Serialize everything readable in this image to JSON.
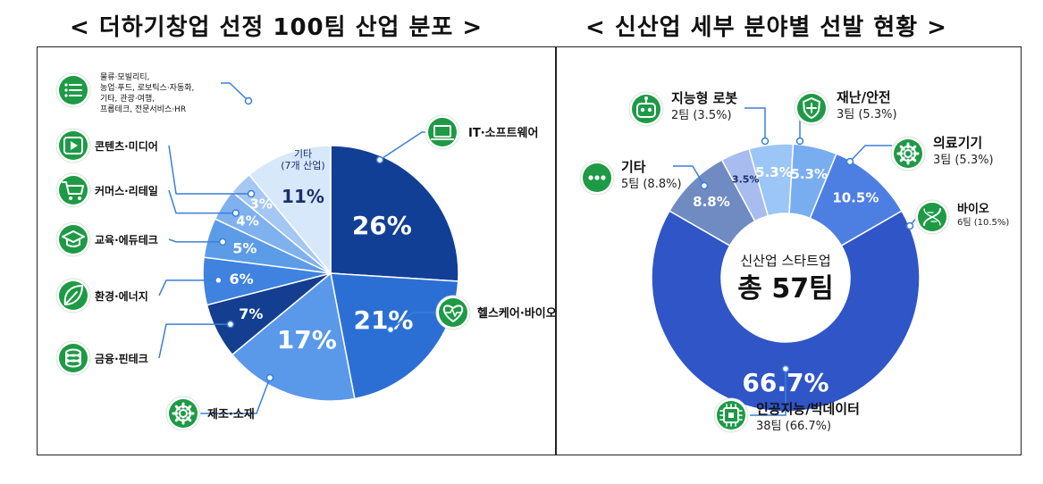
{
  "titles": {
    "left": "< 더하기창업 선정 100팀 산업 분포 >",
    "right": "< 신산업 세부 분야별 선발 현황 >"
  },
  "colors": {
    "label_green": "#1e9a46",
    "label_green_dark": "#14773a",
    "leader": "#3b7fd6"
  },
  "chart_data": [
    {
      "type": "pie",
      "title": "더하기창업 선정 100팀 산업 분포",
      "slices": [
        {
          "label": "IT·소프트웨어",
          "value": 26,
          "value_label": "26%",
          "color": "#123f96",
          "icon": "laptop-icon"
        },
        {
          "label": "헬스케어·바이오",
          "value": 21,
          "value_label": "21%",
          "color": "#2c6fd4",
          "icon": "heartbeat-icon"
        },
        {
          "label": "제조·소재",
          "value": 17,
          "value_label": "17%",
          "color": "#5a98ea",
          "icon": "gear-icon"
        },
        {
          "label": "금융·핀테크",
          "value": 7,
          "value_label": "7%",
          "color": "#143f90",
          "icon": "coins-icon"
        },
        {
          "label": "환경·에너지",
          "value": 6,
          "value_label": "6%",
          "color": "#3f82df",
          "icon": "leaf-icon"
        },
        {
          "label": "교육·에듀테크",
          "value": 5,
          "value_label": "5%",
          "color": "#5c9ce6",
          "icon": "graduation-cap-icon"
        },
        {
          "label": "커머스·리테일",
          "value": 4,
          "value_label": "4%",
          "color": "#7eb1ee",
          "icon": "cart-icon"
        },
        {
          "label": "콘텐츠·미디어",
          "value": 3,
          "value_label": "3%",
          "color": "#a4c8f3",
          "icon": "play-icon"
        },
        {
          "label": "기타\n(7개 산업)",
          "value": 11,
          "value_label": "11%",
          "color": "#d8e8fb",
          "icon": "list-icon",
          "sub_items": [
            "물류·모빌리티,",
            "농업·푸드, 로보틱스·자동화,",
            "기타, 관광·여행,",
            "프롭테크, 전문서비스·HR"
          ]
        }
      ]
    },
    {
      "type": "pie",
      "title": "신산업 세부 분야별 선발 현황",
      "center_label": "신산업 스타트업",
      "center_value": "총 57팀",
      "slices": [
        {
          "label": "인공지능/빅데이터",
          "teams": 38,
          "value": 66.7,
          "value_label": "66.7%",
          "detail": "38팀 (66.7%)",
          "color": "#2f55c7",
          "icon": "chip-icon"
        },
        {
          "label": "기타",
          "teams": 5,
          "value": 8.8,
          "value_label": "8.8%",
          "detail": "5팀 (8.8%)",
          "color": "#6f8bc2",
          "icon": "dots-icon"
        },
        {
          "label": "지능형 로봇",
          "teams": 2,
          "value": 3.5,
          "value_label": "3.5%",
          "detail": "2팀 (3.5%)",
          "color": "#a9bcef",
          "icon": "robot-icon"
        },
        {
          "label": "재난/안전",
          "teams": 3,
          "value": 5.3,
          "value_label": "5.3%",
          "detail": "3팀 (5.3%)",
          "color": "#9cc6f5",
          "icon": "shield-icon"
        },
        {
          "label": "의료기기",
          "teams": 3,
          "value": 5.3,
          "value_label": "5.3%",
          "detail": "3팀 (5.3%)",
          "color": "#78aef0",
          "icon": "gear-icon"
        },
        {
          "label": "바이오",
          "teams": 6,
          "value": 10.5,
          "value_label": "10.5%",
          "detail": "6팀 (10.5%)",
          "color": "#4d7fe3",
          "icon": "dna-icon"
        }
      ]
    }
  ]
}
